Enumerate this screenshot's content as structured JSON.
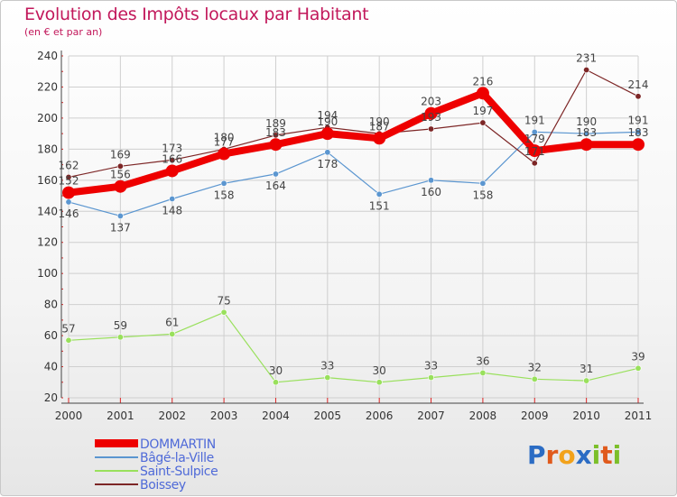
{
  "header": {
    "title": "Evolution des Impôts locaux par Habitant",
    "subtitle": "(en € et par an)"
  },
  "brand": {
    "letters": [
      "P",
      "r",
      "o",
      "x",
      "i",
      "t",
      "i"
    ],
    "colors": [
      "#2b6cc4",
      "#e05a1c",
      "#f2a21b",
      "#2b6cc4",
      "#7cbf2a",
      "#e05a1c",
      "#7cbf2a"
    ]
  },
  "chart_data": {
    "type": "line",
    "title": "Evolution des Impôts locaux par Habitant",
    "subtitle": "(en € et par an)",
    "xlabel": "",
    "ylabel": "",
    "x": [
      "2000",
      "2001",
      "2002",
      "2003",
      "2004",
      "2005",
      "2006",
      "2007",
      "2008",
      "2009",
      "2010",
      "2011"
    ],
    "ylim": [
      20,
      240
    ],
    "yticks": [
      20,
      40,
      60,
      80,
      100,
      120,
      140,
      160,
      180,
      200,
      220,
      240
    ],
    "grid": true,
    "legend_position": "bottom-left",
    "series": [
      {
        "name": "DOMMARTIN",
        "color": "#ee0000",
        "values": [
          152,
          156,
          166,
          177,
          183,
          190,
          187,
          203,
          216,
          179,
          183,
          183
        ]
      },
      {
        "name": "Bâgé-la-Ville",
        "color": "#5b96d0",
        "values": [
          146,
          137,
          148,
          158,
          164,
          178,
          151,
          160,
          158,
          191,
          190,
          191
        ]
      },
      {
        "name": "Saint-Sulpice",
        "color": "#99e05c",
        "values": [
          57,
          59,
          61,
          75,
          30,
          33,
          30,
          33,
          36,
          32,
          31,
          39
        ]
      },
      {
        "name": "Boissey",
        "color": "#7d2626",
        "values": [
          162,
          169,
          173,
          180,
          189,
          194,
          190,
          193,
          197,
          171,
          231,
          214
        ]
      }
    ]
  }
}
